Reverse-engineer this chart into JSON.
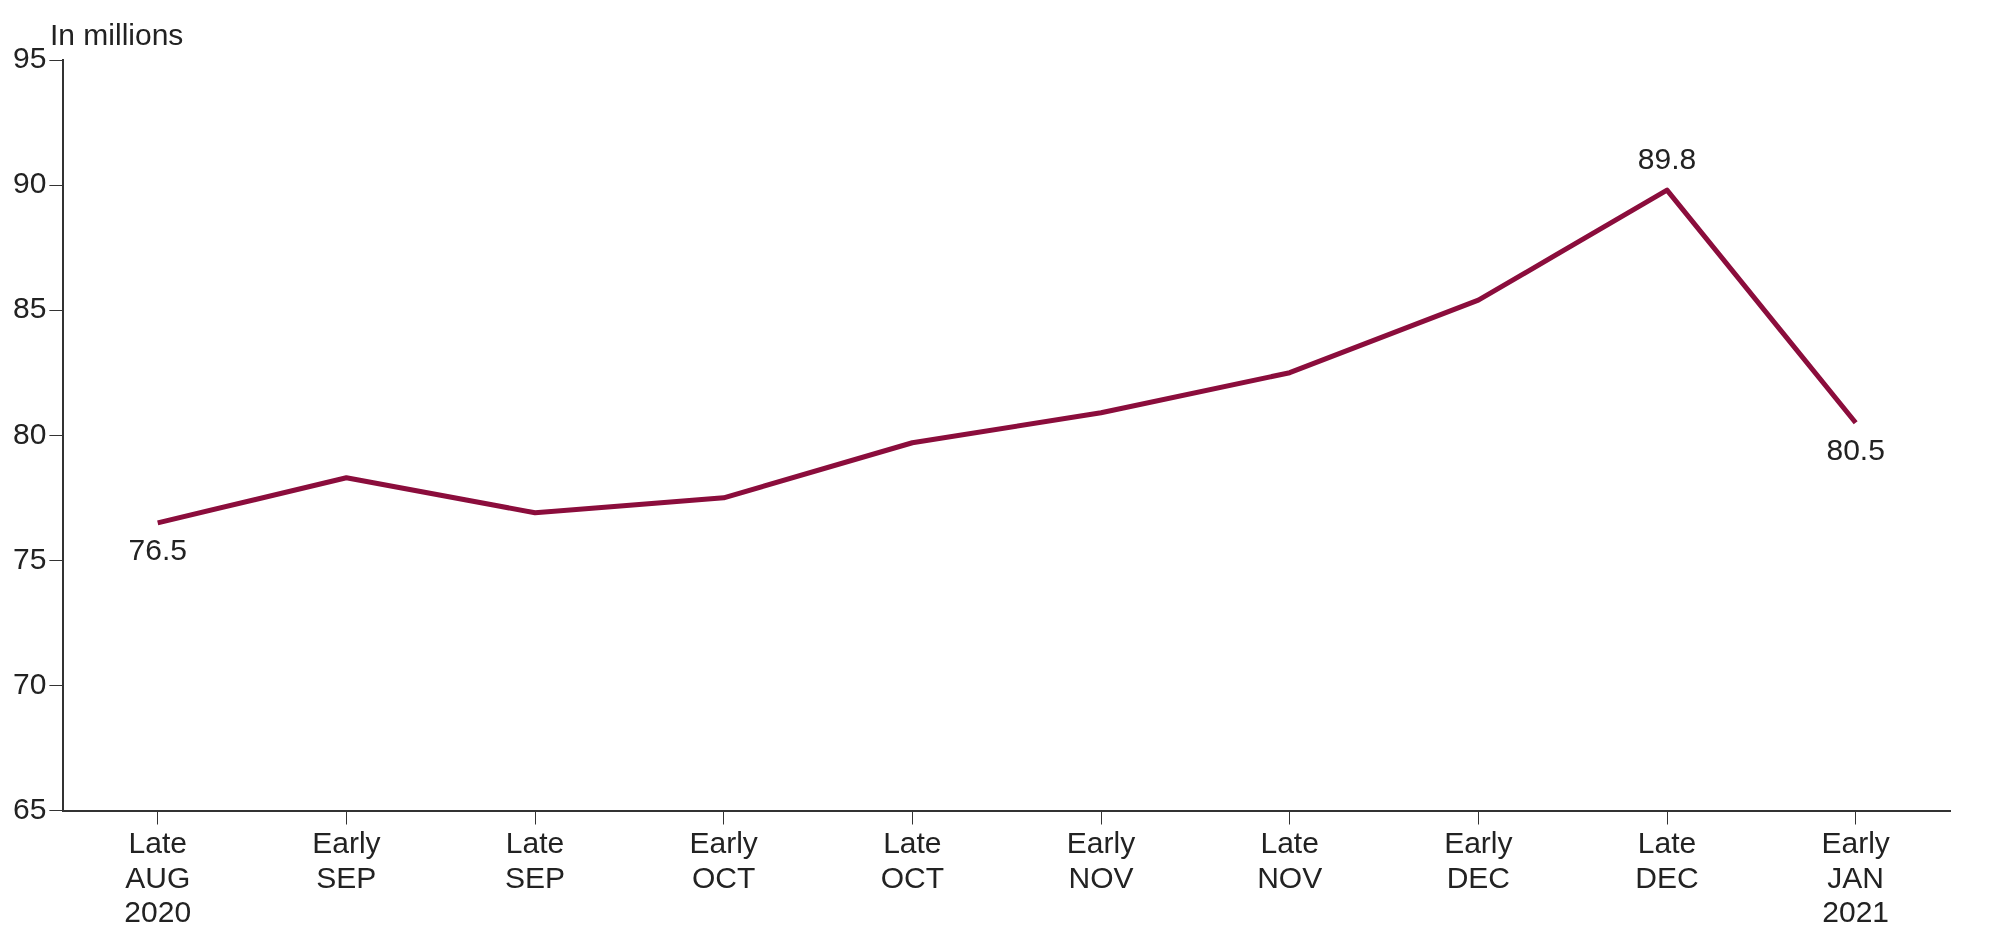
{
  "chart_data": {
    "type": "line",
    "ylabel": "In millions",
    "categories": [
      "Late\nAUG\n2020",
      "Early\nSEP",
      "Late\nSEP",
      "Early\nOCT",
      "Late\nOCT",
      "Early\nNOV",
      "Late\nNOV",
      "Early\nDEC",
      "Late\nDEC",
      "Early\nJAN\n2021"
    ],
    "series": [
      {
        "color": "#8b0d3c",
        "values": [
          76.5,
          78.3,
          76.9,
          77.5,
          79.7,
          80.9,
          82.5,
          85.4,
          89.8,
          80.5
        ],
        "value_labels": [
          "76.5",
          null,
          null,
          null,
          null,
          null,
          null,
          null,
          "89.8",
          "80.5"
        ]
      }
    ],
    "ylim": [
      65,
      95
    ],
    "yticks": [
      65,
      70,
      75,
      80,
      85,
      90,
      95
    ],
    "grid": false,
    "legend": false,
    "marker": "none",
    "line_style": "solid"
  }
}
